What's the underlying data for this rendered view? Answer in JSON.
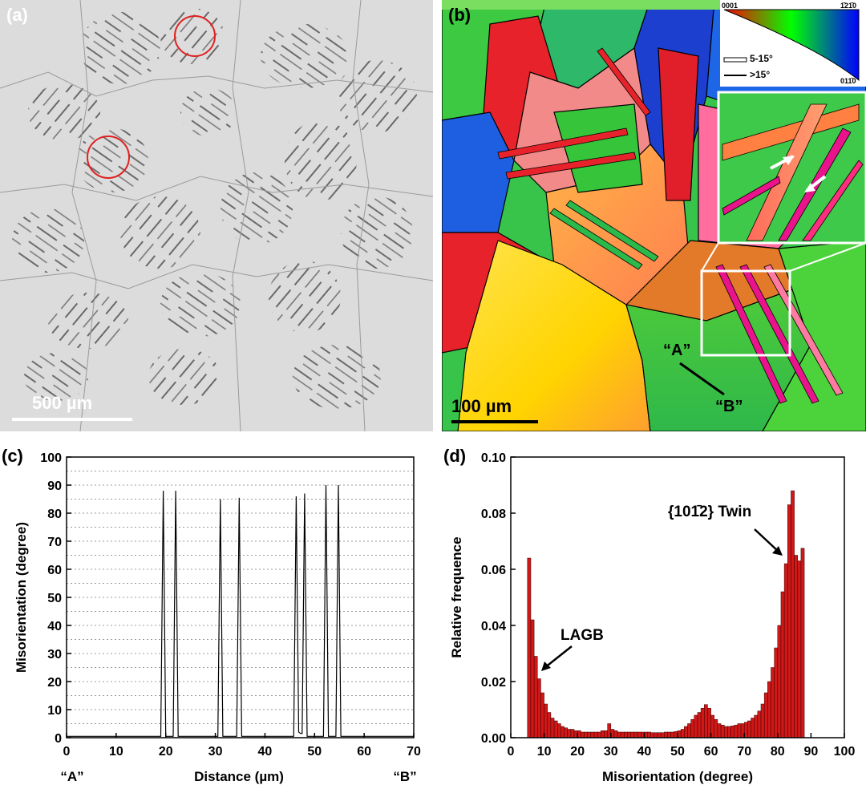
{
  "panels": {
    "a": {
      "label": "(a)",
      "scalebar": "500 µm"
    },
    "b": {
      "label": "(b)",
      "scalebar": "100 µm",
      "line_start": "“A”",
      "line_end": "“B”",
      "ipf_legend": {
        "corner_top_left": "0001",
        "corner_top_right": "1̄21̄0",
        "corner_bottom_right": "011̄0"
      },
      "boundary_legend": [
        {
          "label": "5-15°",
          "style": "double-line"
        },
        {
          "label": ">15°",
          "style": "solid-line"
        }
      ]
    },
    "c": {
      "label": "(c)"
    },
    "d": {
      "label": "(d)"
    }
  },
  "chart_data": [
    {
      "id": "c",
      "type": "line",
      "xlabel": "Distance (µm)",
      "ylabel": "Misorientation (degree)",
      "xlim": [
        0,
        70
      ],
      "ylim": [
        0,
        100
      ],
      "xticks": [
        0,
        10,
        20,
        30,
        40,
        50,
        60,
        70
      ],
      "yticks": [
        0,
        10,
        20,
        30,
        40,
        50,
        60,
        70,
        80,
        90,
        100
      ],
      "x_start_label": "“A”",
      "x_end_label": "“B”",
      "grid": "horizontal-dotted-every-5",
      "series": [
        {
          "x": [
            0,
            19.0,
            19.5,
            20.0,
            21.5,
            22.0,
            22.5,
            30.5,
            31.0,
            31.5,
            34.3,
            34.8,
            35.3,
            45.8,
            46.3,
            46.8,
            47.2,
            47.5,
            48.0,
            48.5,
            51.8,
            52.3,
            52.8,
            54.3,
            54.8,
            55.3,
            70
          ],
          "y": [
            0.5,
            0.5,
            88,
            0.5,
            0.5,
            88,
            0.5,
            0.5,
            85,
            0.5,
            0.5,
            85.5,
            0.5,
            0.5,
            86,
            2,
            1.5,
            1.5,
            87,
            0.5,
            0.5,
            90,
            0.5,
            0.5,
            90,
            0.5,
            0.5
          ]
        }
      ]
    },
    {
      "id": "d",
      "type": "bar",
      "xlabel": "Misorientation (degree)",
      "ylabel": "Relative frequence",
      "xlim": [
        0,
        100
      ],
      "ylim": [
        0,
        0.1
      ],
      "xticks": [
        0,
        10,
        20,
        30,
        40,
        50,
        60,
        70,
        80,
        90,
        100
      ],
      "yticks": [
        "0.00",
        "0.02",
        "0.04",
        "0.06",
        "0.08",
        "0.10"
      ],
      "bar_start": 5,
      "bin_width": 1,
      "values": [
        0.064,
        0.042,
        0.029,
        0.021,
        0.016,
        0.012,
        0.009,
        0.007,
        0.006,
        0.005,
        0.004,
        0.0035,
        0.003,
        0.003,
        0.0025,
        0.0025,
        0.002,
        0.002,
        0.002,
        0.002,
        0.002,
        0.002,
        0.0025,
        0.0025,
        0.005,
        0.003,
        0.0025,
        0.002,
        0.002,
        0.002,
        0.002,
        0.002,
        0.002,
        0.002,
        0.002,
        0.002,
        0.002,
        0.0018,
        0.0018,
        0.0018,
        0.0018,
        0.002,
        0.002,
        0.002,
        0.0022,
        0.0025,
        0.003,
        0.004,
        0.005,
        0.0065,
        0.008,
        0.009,
        0.0105,
        0.0118,
        0.0105,
        0.008,
        0.0065,
        0.005,
        0.0045,
        0.004,
        0.004,
        0.0042,
        0.0045,
        0.005,
        0.005,
        0.0055,
        0.006,
        0.007,
        0.008,
        0.0095,
        0.012,
        0.016,
        0.02,
        0.025,
        0.032,
        0.04,
        0.052,
        0.062,
        0.083,
        0.088,
        0.065,
        0.063,
        0.0675
      ],
      "annotations": [
        {
          "text": "LAGB"
        },
        {
          "text": "{101̄2} Twin"
        }
      ]
    }
  ]
}
